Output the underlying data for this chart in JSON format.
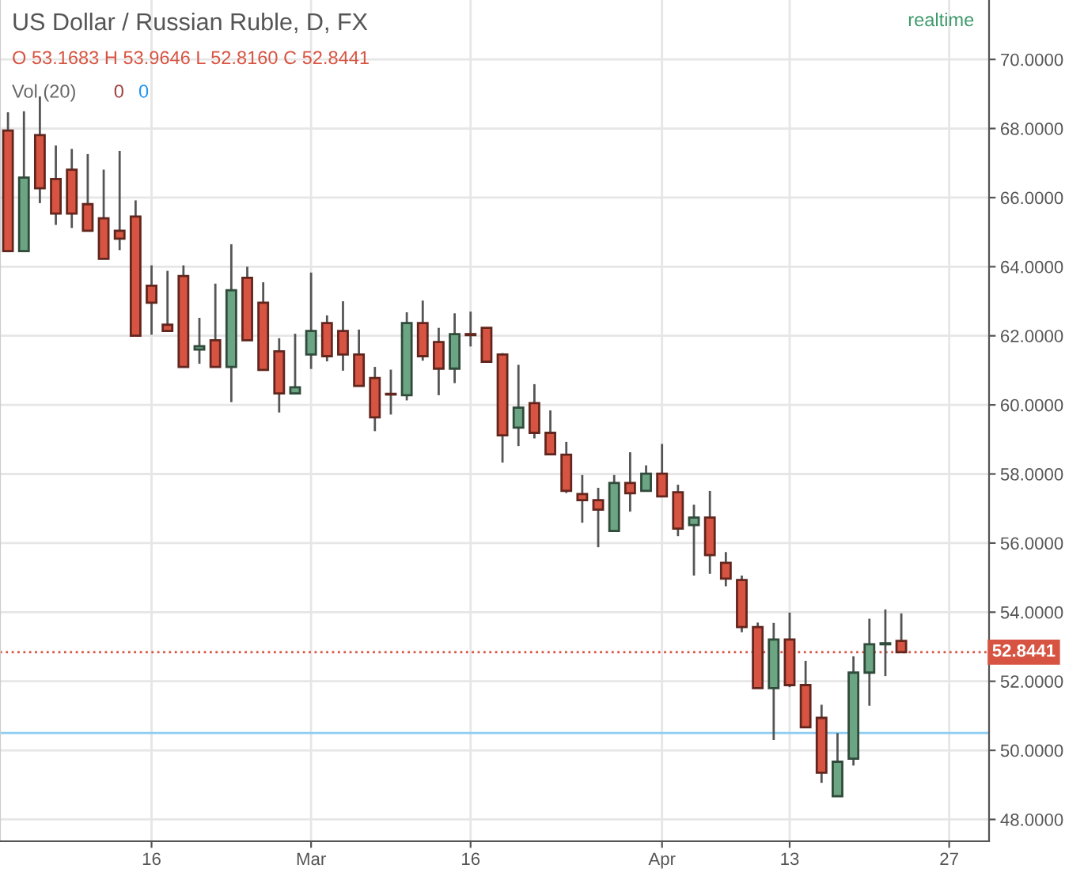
{
  "chart_data": {
    "type": "candlestick",
    "title": "US Dollar / Russian Ruble, D, FX",
    "subtitle": "O 53.1683 H 53.9646 L 52.8160 C 52.8441",
    "annotations": [
      "Vol (20)",
      "0",
      "0",
      "realtime"
    ],
    "categories": [
      null,
      null,
      null,
      null,
      null,
      null,
      null,
      null,
      null,
      "16",
      null,
      null,
      null,
      null,
      null,
      null,
      null,
      null,
      null,
      "Mar",
      null,
      null,
      null,
      null,
      null,
      null,
      null,
      null,
      null,
      "16",
      null,
      null,
      null,
      null,
      null,
      null,
      null,
      null,
      null,
      null,
      null,
      "Apr",
      null,
      null,
      null,
      null,
      null,
      null,
      null,
      "13",
      null,
      null,
      null,
      null,
      null,
      null,
      null,
      null,
      null,
      "27",
      null,
      null
    ],
    "ohlc": [
      [
        67.94,
        68.47,
        64.45,
        64.45
      ],
      [
        64.45,
        68.5,
        64.45,
        66.58
      ],
      [
        67.81,
        68.93,
        65.84,
        66.27
      ],
      [
        66.54,
        67.51,
        65.21,
        65.54
      ],
      [
        66.81,
        67.41,
        65.12,
        65.54
      ],
      [
        65.81,
        67.26,
        65.04,
        65.04
      ],
      [
        65.4,
        66.81,
        64.23,
        64.23
      ],
      [
        65.04,
        67.35,
        64.48,
        64.81
      ],
      [
        65.45,
        65.92,
        62.0,
        62.0
      ],
      [
        63.45,
        64.04,
        62.03,
        62.96
      ],
      [
        62.32,
        63.88,
        62.14,
        62.14
      ],
      [
        63.73,
        64.04,
        61.1,
        61.1
      ],
      [
        61.6,
        62.52,
        61.19,
        61.7
      ],
      [
        61.87,
        63.51,
        61.1,
        61.1
      ],
      [
        61.1,
        64.65,
        60.08,
        63.32
      ],
      [
        63.68,
        64.0,
        61.87,
        61.87
      ],
      [
        62.96,
        63.55,
        61.01,
        61.01
      ],
      [
        61.55,
        61.93,
        59.78,
        60.33
      ],
      [
        60.33,
        62.06,
        60.33,
        60.51
      ],
      [
        61.46,
        63.83,
        61.04,
        62.14
      ],
      [
        62.37,
        62.59,
        61.26,
        61.41
      ],
      [
        62.14,
        63.0,
        60.99,
        61.46
      ],
      [
        61.46,
        62.18,
        60.55,
        60.55
      ],
      [
        60.78,
        61.1,
        59.24,
        59.64
      ],
      [
        60.31,
        61.02,
        59.72,
        60.3
      ],
      [
        60.28,
        62.68,
        60.13,
        62.37
      ],
      [
        62.37,
        63.02,
        61.28,
        61.41
      ],
      [
        61.82,
        62.23,
        60.28,
        61.05
      ],
      [
        61.05,
        62.65,
        60.63,
        62.05
      ],
      [
        62.05,
        62.7,
        61.69,
        62.02
      ],
      [
        62.23,
        62.23,
        61.25,
        61.25
      ],
      [
        61.46,
        61.5,
        58.33,
        59.12
      ],
      [
        59.34,
        61.16,
        58.81,
        59.92
      ],
      [
        60.05,
        60.6,
        59.03,
        59.19
      ],
      [
        59.19,
        59.84,
        58.57,
        58.57
      ],
      [
        58.56,
        58.93,
        57.45,
        57.51
      ],
      [
        57.42,
        57.97,
        56.59,
        57.24
      ],
      [
        57.24,
        57.6,
        55.88,
        56.97
      ],
      [
        56.35,
        57.97,
        56.35,
        57.74
      ],
      [
        57.74,
        58.63,
        56.91,
        57.44
      ],
      [
        57.51,
        58.25,
        57.51,
        58.01
      ],
      [
        58.01,
        58.87,
        57.35,
        57.35
      ],
      [
        57.47,
        57.69,
        56.2,
        56.42
      ],
      [
        56.52,
        57.11,
        55.06,
        56.74
      ],
      [
        56.74,
        57.51,
        55.11,
        55.65
      ],
      [
        55.43,
        55.74,
        54.75,
        54.97
      ],
      [
        54.93,
        55.06,
        53.42,
        53.57
      ],
      [
        53.57,
        53.7,
        51.8,
        51.8
      ],
      [
        51.8,
        53.69,
        50.3,
        53.21
      ],
      [
        53.21,
        53.99,
        51.83,
        51.89
      ],
      [
        51.89,
        52.59,
        50.67,
        50.67
      ],
      [
        50.94,
        51.32,
        49.06,
        49.35
      ],
      [
        48.67,
        50.5,
        48.67,
        49.67
      ],
      [
        49.76,
        52.72,
        49.56,
        52.25
      ],
      [
        52.25,
        53.81,
        51.29,
        53.07
      ],
      [
        53.07,
        54.08,
        52.15,
        53.1
      ],
      [
        53.1683,
        53.9646,
        52.816,
        52.8441
      ],
      null,
      null,
      null,
      null,
      null
    ],
    "colors": [
      "#d75442",
      "#6ba583",
      "#d75442",
      "#d75442",
      "#d75442",
      "#d75442",
      "#d75442",
      "#d75442",
      "#d75442",
      "#d75442",
      "#d75442",
      "#d75442",
      "#6ba583",
      "#d75442",
      "#6ba583",
      "#d75442",
      "#d75442",
      "#d75442",
      "#6ba583",
      "#6ba583",
      "#d75442",
      "#d75442",
      "#d75442",
      "#d75442",
      "#d75442",
      "#6ba583",
      "#d75442",
      "#d75442",
      "#6ba583",
      "#d75442",
      "#d75442",
      "#d75442",
      "#6ba583",
      "#d75442",
      "#d75442",
      "#d75442",
      "#d75442",
      "#d75442",
      "#6ba583",
      "#d75442",
      "#6ba583",
      "#d75442",
      "#d75442",
      "#6ba583",
      "#d75442",
      "#d75442",
      "#d75442",
      "#d75442",
      "#6ba583",
      "#d75442",
      "#d75442",
      "#d75442",
      "#6ba583",
      "#6ba583",
      "#6ba583",
      "#6ba583",
      "#d75442",
      null,
      null,
      null,
      null,
      null
    ],
    "ylim": [
      47.37,
      71.72
    ],
    "yticks": [
      {
        "value": 48,
        "label": "48.0000"
      },
      {
        "value": 50,
        "label": "50.0000"
      },
      {
        "value": 52,
        "label": "52.0000"
      },
      {
        "value": 54,
        "label": "54.0000"
      },
      {
        "value": 56,
        "label": "56.0000"
      },
      {
        "value": 58,
        "label": "58.0000"
      },
      {
        "value": 60,
        "label": "60.0000"
      },
      {
        "value": 62,
        "label": "62.0000"
      },
      {
        "value": 64,
        "label": "64.0000"
      },
      {
        "value": 66,
        "label": "66.0000"
      },
      {
        "value": 68,
        "label": "68.0000"
      },
      {
        "value": 70,
        "label": "70.0000"
      }
    ],
    "ref_lines": [
      {
        "axis": "y",
        "value": 52.8441,
        "label": "52.8441",
        "color": "#d75442",
        "line_style": "dotted"
      },
      {
        "axis": "y",
        "value": 50.5,
        "color": "#8ecdf2",
        "line_style": "solid"
      }
    ],
    "grid": true,
    "legend": false
  }
}
